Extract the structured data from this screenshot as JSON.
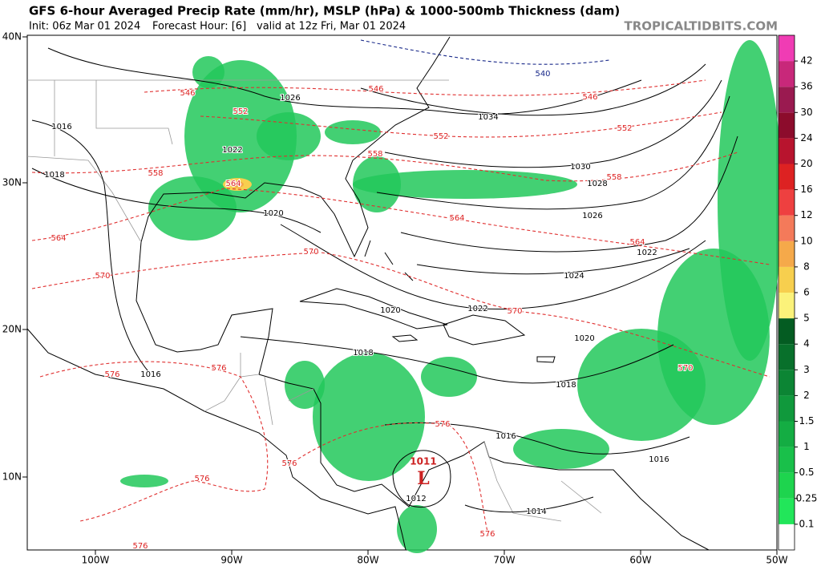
{
  "header": {
    "title": "GFS 6-hour Averaged Precip Rate (mm/hr), MSLP (hPa) & 1000-500mb Thickness (dam)",
    "init": "Init: 06z Mar 01 2024",
    "forecast": "Forecast Hour: [6]",
    "valid": "valid at 12z Fri, Mar 01 2024",
    "site": "TROPICALTIDBITS.COM"
  },
  "map": {
    "lon_labels": [
      "100W",
      "90W",
      "80W",
      "70W",
      "60W",
      "50W"
    ],
    "lat_labels": [
      "40N",
      "30N",
      "20N",
      "10N"
    ],
    "isobar_labels": [
      1026,
      1016,
      1034,
      1022,
      1018,
      1030,
      1028,
      1020,
      1026,
      1022,
      1024,
      1020,
      1022,
      1018,
      1020,
      1016,
      1018,
      1016,
      1016,
      1012,
      1014
    ],
    "thickness_labels": [
      540,
      546,
      546,
      546,
      552,
      552,
      552,
      558,
      558,
      558,
      564,
      564,
      564,
      564,
      570,
      570,
      570,
      570,
      576,
      576,
      576,
      576,
      576,
      576,
      576
    ],
    "low_center": {
      "pressure": 1011,
      "symbol": "L"
    }
  },
  "colorbar": {
    "levels": [
      0.1,
      0.25,
      0.5,
      1,
      1.5,
      2,
      3,
      4,
      5,
      6,
      8,
      10,
      12,
      16,
      20,
      24,
      30,
      36,
      42
    ],
    "colors": [
      "#ffffff",
      "#22e65a",
      "#1ed44e",
      "#19c04a",
      "#14ad43",
      "#10993c",
      "#0c8534",
      "#08702b",
      "#045c22",
      "#fbf27a",
      "#f7cf4e",
      "#f5a94a",
      "#f47a5a",
      "#ee4040",
      "#dd2222",
      "#b8142e",
      "#8c0c2c",
      "#9a1a50",
      "#c8287a",
      "#f03cb4"
    ]
  }
}
